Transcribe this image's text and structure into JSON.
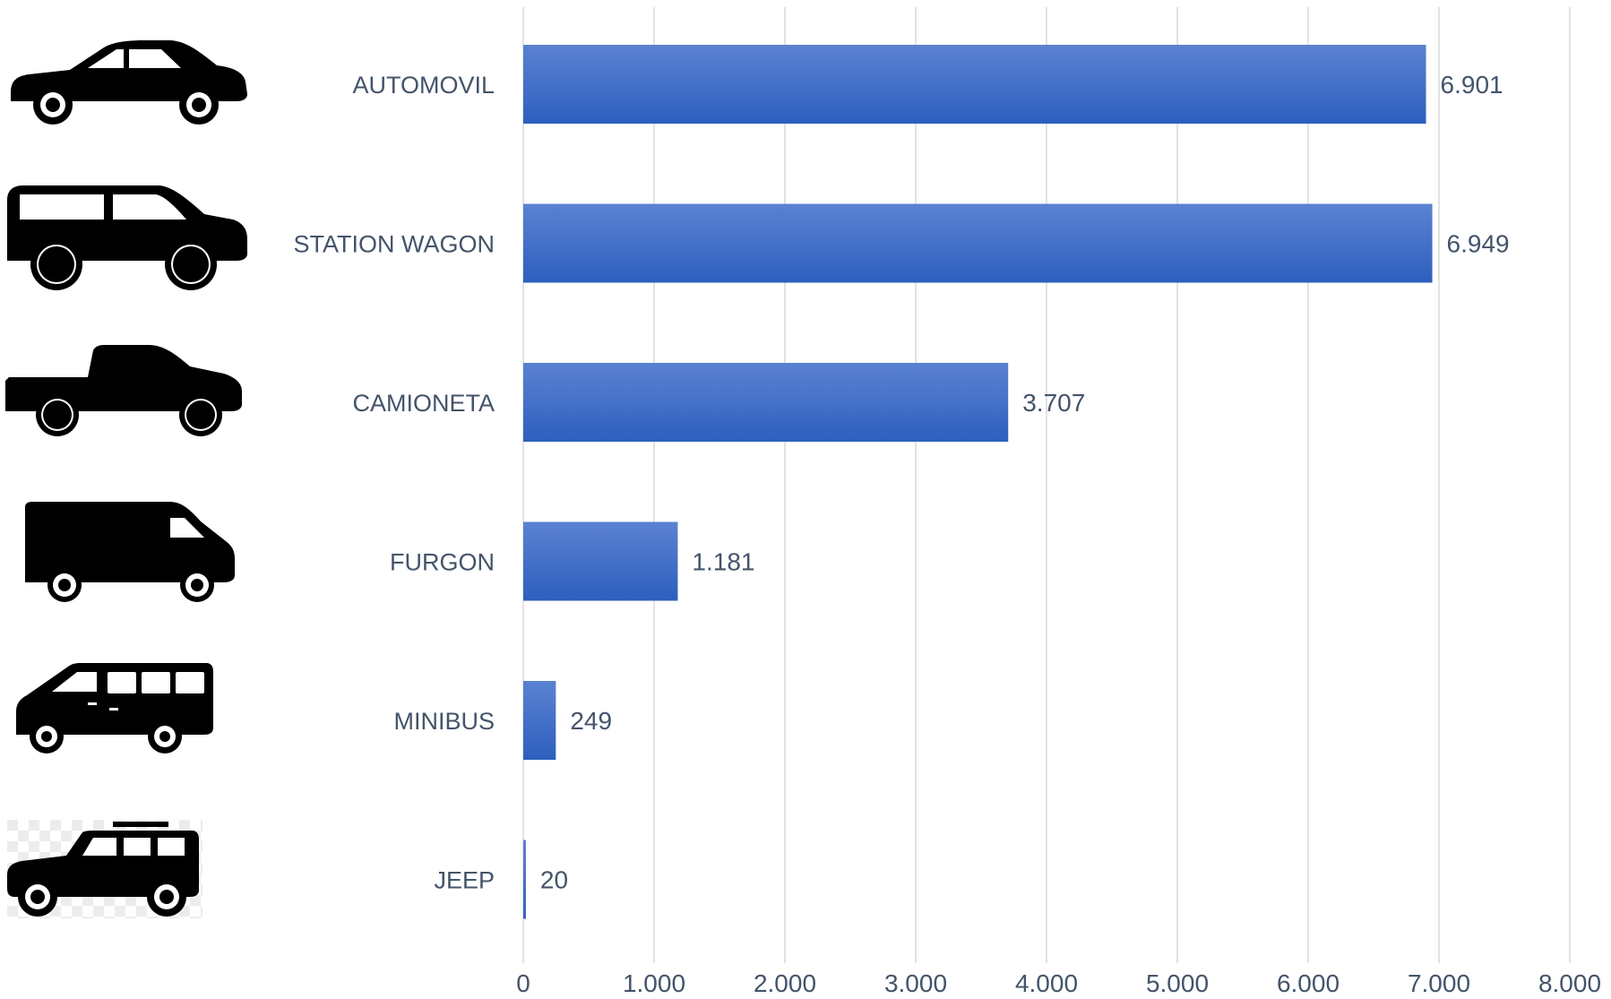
{
  "chart_data": {
    "type": "bar",
    "orientation": "horizontal",
    "categories": [
      "AUTOMOVIL",
      "STATION WAGON",
      "CAMIONETA",
      "FURGON",
      "MINIBUS",
      "JEEP"
    ],
    "values": [
      6901,
      6949,
      3707,
      1181,
      249,
      20
    ],
    "value_labels": [
      "6.901",
      "6.949",
      "3.707",
      "1.181",
      "249",
      "20"
    ],
    "x_ticks": [
      0,
      1000,
      2000,
      3000,
      4000,
      5000,
      6000,
      7000,
      8000
    ],
    "x_tick_labels": [
      "0",
      "1.000",
      "2.000",
      "3.000",
      "4.000",
      "5.000",
      "6.000",
      "7.000",
      "8.000"
    ],
    "xlim": [
      0,
      8000
    ],
    "grid": "vertical",
    "legend": "none",
    "bar_color_top": "#5b82d2",
    "bar_color_bottom": "#2d5fbe",
    "icons": [
      "sedan-car-icon",
      "station-wagon-icon",
      "pickup-truck-icon",
      "cargo-van-icon",
      "minibus-icon",
      "jeep-suv-icon"
    ]
  }
}
